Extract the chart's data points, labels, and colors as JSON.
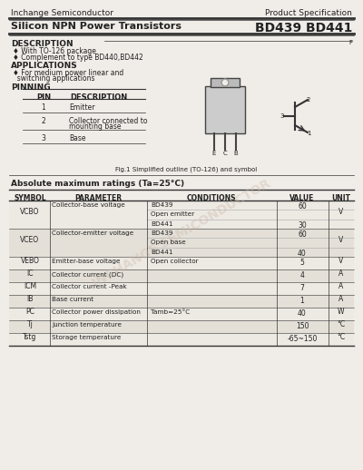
{
  "bg_color": "#f0ede8",
  "header_company": "Inchange Semiconductor",
  "header_right": "Product Specification",
  "title_left": "Silicon NPN Power Transistors",
  "title_right": "BD439 BD441",
  "description_title": "DESCRIPTION",
  "description_items": [
    "♦ With TO-126 package",
    "♦ Complement to type BD440,BD442"
  ],
  "applications_title": "APPLICATIONS",
  "applications_items": [
    "♦ For medium power linear and",
    "  switching applications"
  ],
  "pinning_title": "PINNING",
  "pin_headers": [
    "PIN",
    "DESCRIPTION"
  ],
  "pin_rows": [
    [
      "1",
      "Emitter"
    ],
    [
      "2",
      "Collector connected to\n  mounting base"
    ],
    [
      "3",
      "Base"
    ]
  ],
  "fig_caption": "Fig.1 Simplified outline (TO-126) and symbol",
  "abs_title": "Absolute maximum ratings (Ta=25°C)",
  "table_headers": [
    "SYMBOL",
    "PARAMETER",
    "CONDITIONS",
    "VALUE",
    "UNIT"
  ],
  "table_rows": [
    [
      "VCBO",
      "Collector-base voltage",
      "BD439\n  Open emitter\nBD441",
      "60\n\n30",
      "V"
    ],
    [
      "VCEO",
      "Collector-emitter voltage",
      "BD439\n  Open base\nBD441",
      "60\n\n40",
      "V"
    ],
    [
      "VEBO",
      "Emitter-base voltage",
      "Open collector",
      "5",
      "V"
    ],
    [
      "IC",
      "Collector current (DC)",
      "",
      "4",
      "A"
    ],
    [
      "ICM",
      "Collector current -Peak",
      "",
      "7",
      "A"
    ],
    [
      "IB",
      "Base current",
      "",
      "1",
      "A"
    ],
    [
      "PC",
      "Collector power dissipation",
      "Tamb=25°C",
      "40",
      "W"
    ],
    [
      "Tj",
      "Junction temperature",
      "",
      "150",
      "°C"
    ],
    [
      "Tstg",
      "Storage temperature",
      "",
      "-65~150",
      "°C"
    ]
  ],
  "watermark": "INCHANGE SEMICONDUCTOR",
  "line_color": "#333333",
  "text_color": "#222222"
}
